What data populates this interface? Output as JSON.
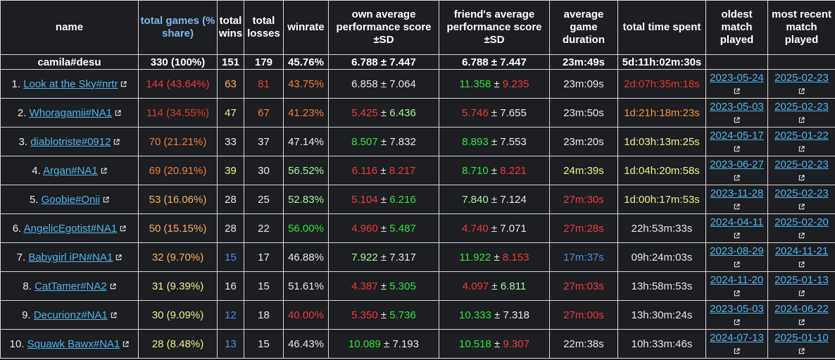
{
  "headers": {
    "name": "name",
    "games": "total games (% share)",
    "wins": "total wins",
    "losses": "total losses",
    "winrate": "winrate",
    "own": "own average performance score ±SD",
    "friend": "friend's average performance score ±SD",
    "duration": "average game duration",
    "time": "total time spent",
    "oldest": "oldest match played",
    "recent": "most recent match played"
  },
  "summary": {
    "name": "camila#desu",
    "games": "330 (100%)",
    "wins": "151",
    "losses": "179",
    "winrate": "45.76%",
    "own": "6.788 ± 7.447",
    "friend": "6.788 ± 7.447",
    "duration": "23m:49s",
    "time": "5d:11h:02m:30s",
    "oldest": "",
    "recent": ""
  },
  "colors": {
    "red": "#f03a3a",
    "orange": "#f07f3c",
    "amber": "#f5b25c",
    "yellow": "#f3ee8a",
    "green": "#2ee63a",
    "lightgreen": "#a6f59a",
    "white": "#e8e8e8",
    "blue": "#4a8fe0",
    "link": "#4fb4e8",
    "deepred": "#e23a2a",
    "deeporange": "#f0953c"
  },
  "rows": [
    {
      "rank": "1.",
      "name": "Look at the Sky#nrtr",
      "games": "144 (43.64%)",
      "games_c": "red",
      "wins": "63",
      "wins_c": "amber",
      "losses": "81",
      "losses_c": "red",
      "winrate": "43.75%",
      "winrate_c": "orange",
      "own_m": "6.858",
      "own_m_c": "white",
      "own_sd": "7.064",
      "own_sd_c": "white",
      "fr_m": "11.358",
      "fr_m_c": "green",
      "fr_sd": "9.235",
      "fr_sd_c": "red",
      "duration": "23m:09s",
      "duration_c": "white",
      "time": "2d:07h:35m:18s",
      "time_c": "deepred",
      "oldest": "2023-05-24",
      "recent": "2025-02-23"
    },
    {
      "rank": "2.",
      "name": "Whoragamii#NA1",
      "games": "114 (34.55%)",
      "games_c": "deepred",
      "wins": "47",
      "wins_c": "yellow",
      "losses": "67",
      "losses_c": "orange",
      "winrate": "41.23%",
      "winrate_c": "orange",
      "own_m": "5.425",
      "own_m_c": "red",
      "own_sd": "6.436",
      "own_sd_c": "lightgreen",
      "fr_m": "5.746",
      "fr_m_c": "red",
      "fr_sd": "7.655",
      "fr_sd_c": "white",
      "duration": "23m:50s",
      "duration_c": "white",
      "time": "1d:21h:18m:23s",
      "time_c": "deeporange",
      "oldest": "2023-05-03",
      "recent": "2025-02-23"
    },
    {
      "rank": "3.",
      "name": "diablotriste#0912",
      "games": "70 (21.21%)",
      "games_c": "orange",
      "wins": "33",
      "wins_c": "white",
      "losses": "37",
      "losses_c": "white",
      "winrate": "47.14%",
      "winrate_c": "white",
      "own_m": "8.507",
      "own_m_c": "green",
      "own_sd": "7.832",
      "own_sd_c": "white",
      "fr_m": "8.893",
      "fr_m_c": "green",
      "fr_sd": "7.553",
      "fr_sd_c": "white",
      "duration": "23m:20s",
      "duration_c": "white",
      "time": "1d:03h:13m:25s",
      "time_c": "yellow",
      "oldest": "2024-05-17",
      "recent": "2025-01-22"
    },
    {
      "rank": "4.",
      "name": "Argan#NA1",
      "games": "69 (20.91%)",
      "games_c": "orange",
      "wins": "39",
      "wins_c": "yellow",
      "losses": "30",
      "losses_c": "white",
      "winrate": "56.52%",
      "winrate_c": "lightgreen",
      "own_m": "6.116",
      "own_m_c": "red",
      "own_sd": "8.217",
      "own_sd_c": "red",
      "fr_m": "8.710",
      "fr_m_c": "green",
      "fr_sd": "8.221",
      "fr_sd_c": "red",
      "duration": "24m:39s",
      "duration_c": "yellow",
      "time": "1d:04h:20m:58s",
      "time_c": "yellow",
      "oldest": "2023-06-27",
      "recent": "2025-02-23"
    },
    {
      "rank": "5.",
      "name": "Goobie#Onii",
      "games": "53 (16.06%)",
      "games_c": "amber",
      "wins": "28",
      "wins_c": "white",
      "losses": "25",
      "losses_c": "white",
      "winrate": "52.83%",
      "winrate_c": "lightgreen",
      "own_m": "5.104",
      "own_m_c": "red",
      "own_sd": "6.216",
      "own_sd_c": "green",
      "fr_m": "7.840",
      "fr_m_c": "lightgreen",
      "fr_sd": "7.124",
      "fr_sd_c": "white",
      "duration": "27m:30s",
      "duration_c": "red",
      "time": "1d:00h:17m:53s",
      "time_c": "yellow",
      "oldest": "2023-11-28",
      "recent": "2025-02-23"
    },
    {
      "rank": "6.",
      "name": "AngelicEgotist#NA1",
      "games": "50 (15.15%)",
      "games_c": "amber",
      "wins": "28",
      "wins_c": "white",
      "losses": "22",
      "losses_c": "white",
      "winrate": "56.00%",
      "winrate_c": "green",
      "own_m": "4.960",
      "own_m_c": "red",
      "own_sd": "5.487",
      "own_sd_c": "green",
      "fr_m": "4.740",
      "fr_m_c": "red",
      "fr_sd": "7.071",
      "fr_sd_c": "white",
      "duration": "27m:28s",
      "duration_c": "red",
      "time": "22h:53m:33s",
      "time_c": "white",
      "oldest": "2024-04-11",
      "recent": "2025-02-20"
    },
    {
      "rank": "7.",
      "name": "Babygirl iPN#NA1",
      "games": "32 (9.70%)",
      "games_c": "amber",
      "wins": "15",
      "wins_c": "blue",
      "losses": "17",
      "losses_c": "white",
      "winrate": "46.88%",
      "winrate_c": "white",
      "own_m": "7.922",
      "own_m_c": "lightgreen",
      "own_sd": "7.317",
      "own_sd_c": "white",
      "fr_m": "11.922",
      "fr_m_c": "green",
      "fr_sd": "8.153",
      "fr_sd_c": "red",
      "duration": "17m:37s",
      "duration_c": "blue",
      "time": "09h:24m:03s",
      "time_c": "white",
      "oldest": "2023-08-29",
      "recent": "2024-11-21"
    },
    {
      "rank": "8.",
      "name": "CatTamer#NA2",
      "games": "31 (9.39%)",
      "games_c": "yellow",
      "wins": "16",
      "wins_c": "white",
      "losses": "15",
      "losses_c": "white",
      "winrate": "51.61%",
      "winrate_c": "white",
      "own_m": "4.387",
      "own_m_c": "red",
      "own_sd": "5.305",
      "own_sd_c": "green",
      "fr_m": "4.097",
      "fr_m_c": "red",
      "fr_sd": "6.811",
      "fr_sd_c": "lightgreen",
      "duration": "27m:03s",
      "duration_c": "red",
      "time": "13h:58m:53s",
      "time_c": "white",
      "oldest": "2024-11-20",
      "recent": "2025-01-13"
    },
    {
      "rank": "9.",
      "name": "Decurionz#NA1",
      "games": "30 (9.09%)",
      "games_c": "yellow",
      "wins": "12",
      "wins_c": "blue",
      "losses": "18",
      "losses_c": "white",
      "winrate": "40.00%",
      "winrate_c": "red",
      "own_m": "5.350",
      "own_m_c": "red",
      "own_sd": "5.736",
      "own_sd_c": "green",
      "fr_m": "10.333",
      "fr_m_c": "green",
      "fr_sd": "7.318",
      "fr_sd_c": "white",
      "duration": "27m:00s",
      "duration_c": "red",
      "time": "13h:30m:24s",
      "time_c": "white",
      "oldest": "2023-05-03",
      "recent": "2024-06-22"
    },
    {
      "rank": "10.",
      "name": "Squawk Bawx#NA1",
      "games": "28 (8.48%)",
      "games_c": "yellow",
      "wins": "13",
      "wins_c": "blue",
      "losses": "15",
      "losses_c": "white",
      "winrate": "46.43%",
      "winrate_c": "white",
      "own_m": "10.089",
      "own_m_c": "green",
      "own_sd": "7.193",
      "own_sd_c": "white",
      "fr_m": "10.518",
      "fr_m_c": "green",
      "fr_sd": "9.307",
      "fr_sd_c": "red",
      "duration": "22m:38s",
      "duration_c": "white",
      "time": "10h:33m:46s",
      "time_c": "white",
      "oldest": "2024-07-13",
      "recent": "2025-01-10"
    }
  ]
}
